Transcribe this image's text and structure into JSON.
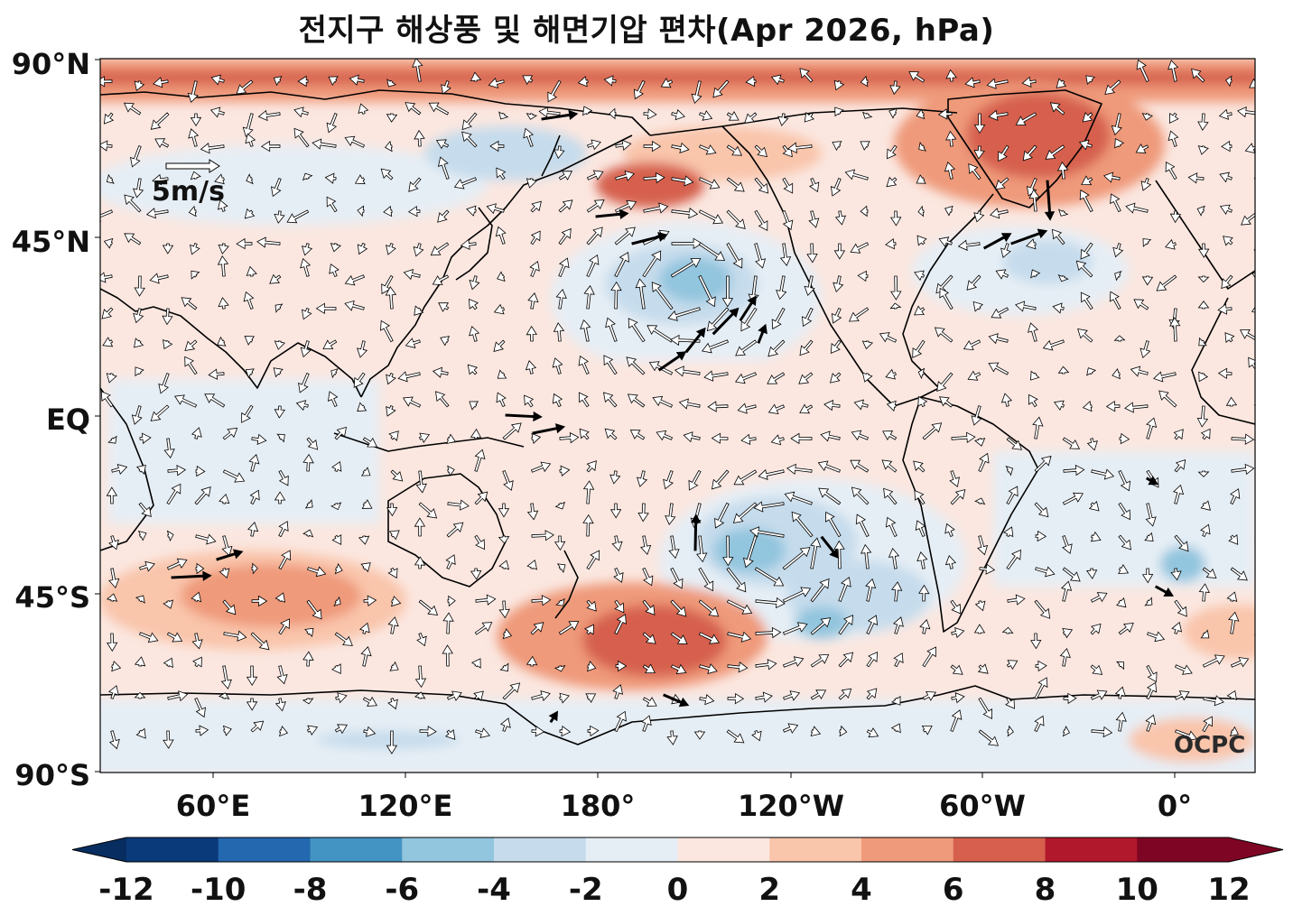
{
  "title": "전지구 해상풍 및 해면기압 편차(Apr 2026, hPa)",
  "y_axis_ticks": [
    "90°N",
    "45°N",
    "EQ",
    "45°S",
    "90°S"
  ],
  "x_axis_ticks": [
    "60°E",
    "120°E",
    "180°",
    "120°W",
    "60°W",
    "0°"
  ],
  "reference_vector_label": "5m/s",
  "watermark": "OCPC",
  "colorbar": {
    "ticks": [
      "-12",
      "-10",
      "-8",
      "-6",
      "-4",
      "-2",
      "0",
      "2",
      "4",
      "6",
      "8",
      "10",
      "12"
    ],
    "colors": [
      "#0b3a7a",
      "#2468b0",
      "#4393c3",
      "#92c5de",
      "#c6dcec",
      "#e6eef5",
      "#fbe7e0",
      "#f9c5ab",
      "#ef9a7a",
      "#d6604d",
      "#b2182b",
      "#7f0524"
    ],
    "under_color": "#082e61",
    "over_color": "#7f0524"
  },
  "colors": {
    "land_outline": "#000000",
    "vector_fill": "#ffffff",
    "vector_strong": "#000000"
  }
}
